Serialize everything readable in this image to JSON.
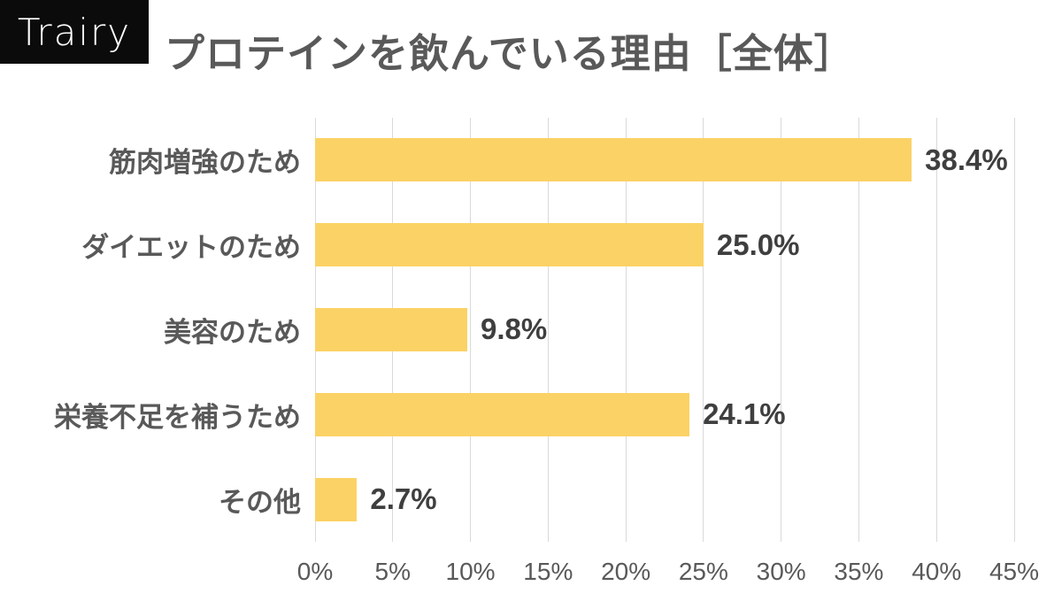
{
  "logo": {
    "text": "Trairy"
  },
  "header": {
    "title": "プロテインを飲んでいる理由［全体］"
  },
  "chart_data": {
    "type": "bar",
    "orientation": "horizontal",
    "title": "プロテインを飲んでいる理由［全体］",
    "categories": [
      "筋肉増強のため",
      "ダイエットのため",
      "美容のため",
      "栄養不足を補うため",
      "その他"
    ],
    "values": [
      38.4,
      25.0,
      9.8,
      24.1,
      2.7
    ],
    "value_labels": [
      "38.4%",
      "25.0%",
      "9.8%",
      "24.1%",
      "2.7%"
    ],
    "x_ticks": [
      "0%",
      "5%",
      "10%",
      "15%",
      "20%",
      "25%",
      "30%",
      "35%",
      "40%",
      "45%"
    ],
    "xlim": [
      0,
      45
    ],
    "grid": true,
    "legend": "none",
    "colors": {
      "bar": "#FBD265",
      "gridline": "#D9D9D9",
      "category_label": "#595959",
      "value_label": "#3F3F3F",
      "tick_label": "#595959",
      "title": "#595959",
      "logo_bg": "#0B0B0B",
      "logo_text": "#FFFFFF"
    }
  }
}
